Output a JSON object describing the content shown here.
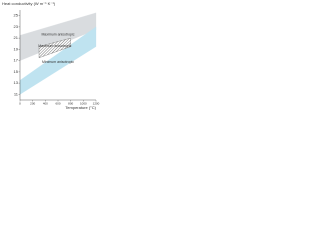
{
  "chart_data": {
    "type": "band",
    "ylabel": "Heat conductivity (W m⁻¹ K⁻¹)",
    "xlabel": "Temperature (°C)",
    "xlim": [
      0,
      1200
    ],
    "xticks": [
      0,
      200,
      400,
      600,
      800,
      1000,
      1200
    ],
    "ylim": [
      10,
      26
    ],
    "yticks": [
      11,
      13,
      15,
      17,
      19,
      21,
      23,
      25
    ],
    "series": [
      {
        "name": "Maximum anisotropic",
        "color": "#d9dcdf",
        "pattern": "solid",
        "x": [
          0,
          1200
        ],
        "low": [
          17,
          22.5
        ],
        "high": [
          21.5,
          25.5
        ]
      },
      {
        "name": "Minimum anisotropic",
        "color": "#bfe3f0",
        "pattern": "solid",
        "x": [
          0,
          1200
        ],
        "low": [
          11,
          19.5
        ],
        "high": [
          13.5,
          23
        ]
      },
      {
        "name": "Maximum anisotropic",
        "color": "#555555",
        "pattern": "hatch",
        "x": [
          300,
          800
        ],
        "low": [
          17.5,
          19.5
        ],
        "high": [
          19.5,
          21
        ]
      }
    ]
  }
}
